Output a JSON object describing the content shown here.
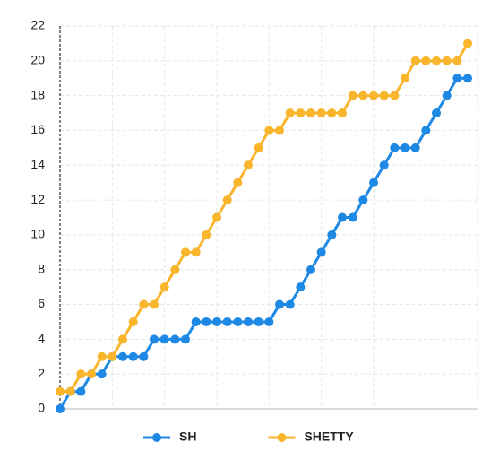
{
  "chart_data": {
    "type": "line",
    "categories": [
      null,
      null,
      null,
      null,
      null,
      null,
      null,
      null,
      null,
      null,
      null,
      null,
      null,
      null,
      null,
      null,
      null,
      null,
      null,
      null,
      null,
      null,
      null,
      null,
      null,
      null,
      null,
      null,
      null,
      null,
      null,
      null,
      null,
      null,
      null,
      null,
      null,
      null,
      null,
      null
    ],
    "series": [
      {
        "name": "SH",
        "color": "#1e88e5",
        "values": [
          0,
          1,
          1,
          2,
          2,
          3,
          3,
          3,
          3,
          4,
          4,
          4,
          4,
          5,
          5,
          5,
          5,
          5,
          5,
          5,
          5,
          6,
          6,
          7,
          8,
          9,
          10,
          11,
          11,
          12,
          13,
          14,
          15,
          15,
          15,
          16,
          17,
          18,
          19,
          19
        ]
      },
      {
        "name": "SHETTY",
        "color": "#f9b52c",
        "values": [
          1,
          1,
          2,
          2,
          3,
          3,
          4,
          5,
          6,
          6,
          7,
          8,
          9,
          9,
          10,
          11,
          12,
          13,
          14,
          15,
          16,
          16,
          17,
          17,
          17,
          17,
          17,
          17,
          18,
          18,
          18,
          18,
          18,
          19,
          20,
          20,
          20,
          20,
          20,
          21
        ]
      }
    ],
    "ylim": [
      0,
      22
    ],
    "yticks": [
      0,
      2,
      4,
      6,
      8,
      10,
      12,
      14,
      16,
      18,
      20,
      22
    ],
    "grid": true
  }
}
